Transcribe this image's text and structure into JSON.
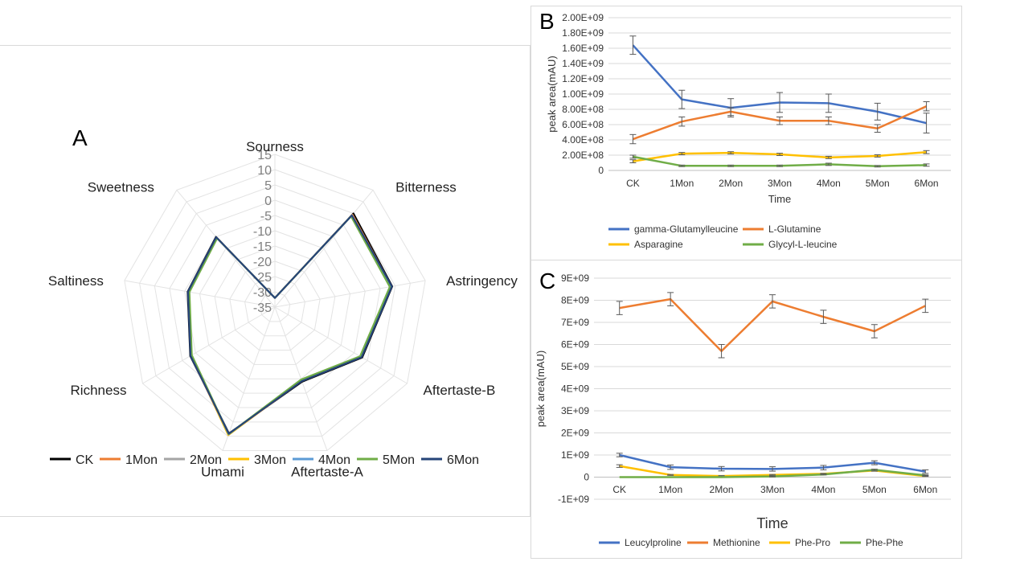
{
  "chart_data": [
    {
      "panel_label": "A",
      "type": "radar",
      "axes": [
        "Sourness",
        "Bitterness",
        "Astringency",
        "Aftertaste-B",
        "Aftertaste-A",
        "Umami",
        "Richness",
        "Saltiness",
        "Sweetness"
      ],
      "rlim": [
        -35,
        15
      ],
      "tick_labels": [
        "15",
        "10",
        "5",
        "0",
        "-5",
        "-10",
        "-15",
        "-20",
        "-25",
        "-30",
        "-35"
      ],
      "series": [
        {
          "name": "CK",
          "color": "#000000",
          "values": [
            -32,
            5,
            4,
            -2,
            -9,
            9,
            -3,
            -6,
            -5
          ]
        },
        {
          "name": "1Mon",
          "color": "#ed7d31",
          "values": [
            -32,
            4.5,
            3.8,
            -2.3,
            -9.3,
            9.5,
            -3.2,
            -6.2,
            -5.2
          ]
        },
        {
          "name": "2Mon",
          "color": "#a5a5a5",
          "values": [
            -32,
            4.3,
            3.7,
            -2.4,
            -9.4,
            9.4,
            -3.3,
            -6.3,
            -5.3
          ]
        },
        {
          "name": "3Mon",
          "color": "#ffc000",
          "values": [
            -32,
            4.1,
            3.5,
            -2.5,
            -9.5,
            9.6,
            -3.4,
            -6.4,
            -5.4
          ]
        },
        {
          "name": "4Mon",
          "color": "#5b9bd5",
          "values": [
            -32,
            4.0,
            3.4,
            -2.6,
            -9.6,
            9.3,
            -3.5,
            -6.5,
            -5.5
          ]
        },
        {
          "name": "5Mon",
          "color": "#70ad47",
          "values": [
            -32,
            3.8,
            3.2,
            -2.8,
            -9.8,
            9.2,
            -3.6,
            -6.6,
            -5.6
          ]
        },
        {
          "name": "6Mon",
          "color": "#264478",
          "values": [
            -32,
            4.2,
            3.9,
            -2.2,
            -9.2,
            9.1,
            -3.1,
            -6.1,
            -5.1
          ]
        }
      ]
    },
    {
      "panel_label": "B",
      "type": "line",
      "categories": [
        "CK",
        "1Mon",
        "2Mon",
        "3Mon",
        "4Mon",
        "5Mon",
        "6Mon"
      ],
      "xlabel": "Time",
      "ylabel": "peak area(mAU)",
      "ylim": [
        0,
        2000000000
      ],
      "y_ticks": [
        {
          "v": 0,
          "label": "0"
        },
        {
          "v": 200000000,
          "label": "2.00E+08"
        },
        {
          "v": 400000000,
          "label": "4.00E+08"
        },
        {
          "v": 600000000,
          "label": "6.00E+08"
        },
        {
          "v": 800000000,
          "label": "8.00E+08"
        },
        {
          "v": 1000000000,
          "label": "1.00E+09"
        },
        {
          "v": 1200000000,
          "label": "1.20E+09"
        },
        {
          "v": 1400000000,
          "label": "1.40E+09"
        },
        {
          "v": 1600000000,
          "label": "1.60E+09"
        },
        {
          "v": 1800000000,
          "label": "1.80E+09"
        },
        {
          "v": 2000000000,
          "label": "2.00E+09"
        }
      ],
      "series": [
        {
          "name": "gamma-Glutamylleucine",
          "color": "#4472c4",
          "values": [
            1640000000,
            930000000,
            820000000,
            890000000,
            880000000,
            770000000,
            620000000
          ],
          "errors": [
            120000000,
            120000000,
            120000000,
            130000000,
            120000000,
            110000000,
            130000000
          ]
        },
        {
          "name": "L-Glutamine",
          "color": "#ed7d31",
          "values": [
            410000000,
            640000000,
            770000000,
            650000000,
            650000000,
            550000000,
            840000000
          ],
          "errors": [
            60000000,
            60000000,
            50000000,
            50000000,
            50000000,
            50000000,
            60000000
          ]
        },
        {
          "name": "Asparagine",
          "color": "#ffc000",
          "values": [
            120000000,
            220000000,
            230000000,
            210000000,
            170000000,
            190000000,
            240000000
          ],
          "errors": [
            20000000,
            15000000,
            15000000,
            15000000,
            15000000,
            15000000,
            20000000
          ]
        },
        {
          "name": "Glycyl-L-leucine",
          "color": "#70ad47",
          "values": [
            180000000,
            60000000,
            60000000,
            60000000,
            80000000,
            55000000,
            70000000
          ],
          "errors": [
            20000000,
            10000000,
            10000000,
            10000000,
            15000000,
            10000000,
            15000000
          ]
        }
      ]
    },
    {
      "panel_label": "C",
      "type": "line",
      "categories": [
        "CK",
        "1Mon",
        "2Mon",
        "3Mon",
        "4Mon",
        "5Mon",
        "6Mon"
      ],
      "xlabel": "Time",
      "ylabel": "peak area(mAU)",
      "ylim": [
        -1000000000,
        9000000000
      ],
      "y_ticks": [
        {
          "v": -1000000000,
          "label": "-1E+09"
        },
        {
          "v": 0,
          "label": "0"
        },
        {
          "v": 1000000000,
          "label": "1E+09"
        },
        {
          "v": 2000000000,
          "label": "2E+09"
        },
        {
          "v": 3000000000,
          "label": "3E+09"
        },
        {
          "v": 4000000000,
          "label": "4E+09"
        },
        {
          "v": 5000000000,
          "label": "5E+09"
        },
        {
          "v": 6000000000,
          "label": "6E+09"
        },
        {
          "v": 7000000000,
          "label": "7E+09"
        },
        {
          "v": 8000000000,
          "label": "8E+09"
        },
        {
          "v": 9000000000,
          "label": "9E+09"
        }
      ],
      "series": [
        {
          "name": "Leucylproline",
          "color": "#4472c4",
          "values": [
            1000000000,
            450000000,
            380000000,
            370000000,
            430000000,
            650000000,
            250000000
          ],
          "errors": [
            80000000,
            100000000,
            100000000,
            100000000,
            100000000,
            90000000,
            80000000
          ]
        },
        {
          "name": "Methionine",
          "color": "#ed7d31",
          "values": [
            7650000000,
            8050000000,
            5700000000,
            7950000000,
            7250000000,
            6600000000,
            7750000000
          ],
          "errors": [
            300000000,
            300000000,
            300000000,
            300000000,
            300000000,
            300000000,
            300000000
          ]
        },
        {
          "name": "Phe-Pro",
          "color": "#ffc000",
          "values": [
            500000000,
            100000000,
            50000000,
            100000000,
            150000000,
            300000000,
            50000000
          ],
          "errors": [
            60000000,
            20000000,
            20000000,
            20000000,
            20000000,
            30000000,
            20000000
          ]
        },
        {
          "name": "Phe-Phe",
          "color": "#70ad47",
          "values": [
            0,
            0,
            0,
            30000000,
            120000000,
            330000000,
            80000000
          ],
          "errors": [
            0,
            0,
            0,
            20000000,
            20000000,
            30000000,
            20000000
          ]
        }
      ]
    }
  ]
}
